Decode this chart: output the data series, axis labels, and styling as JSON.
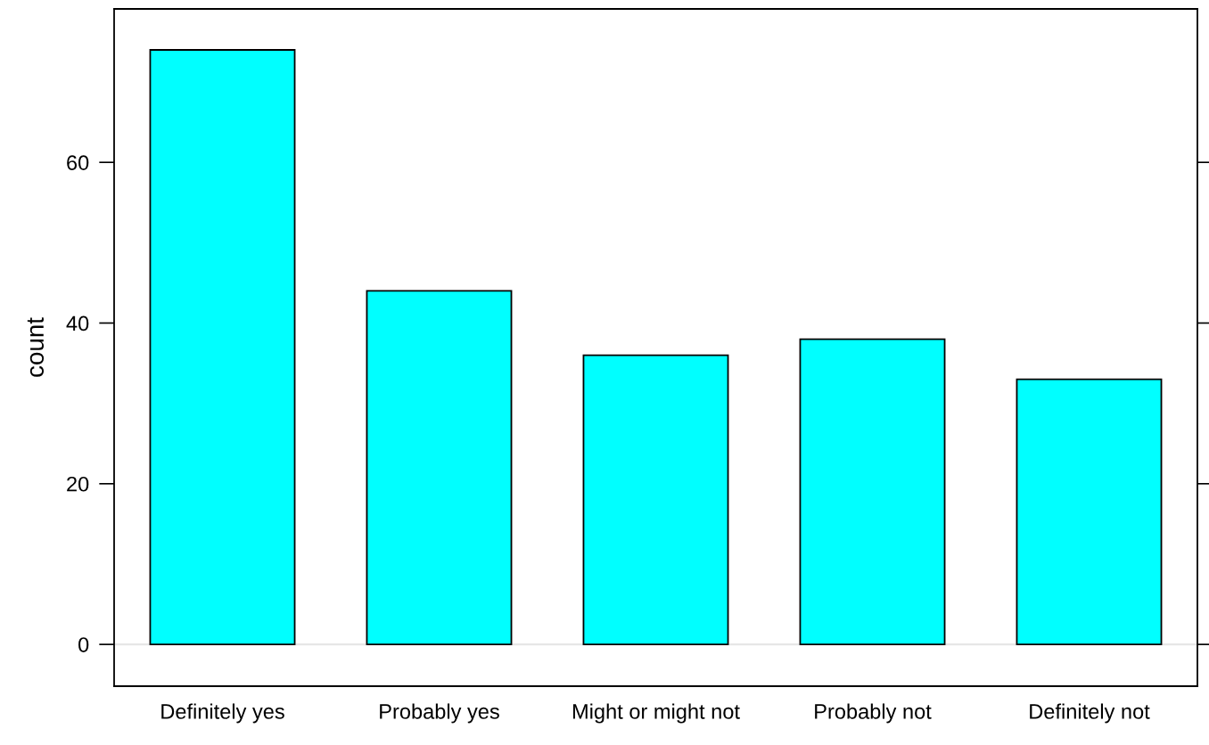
{
  "chart_data": {
    "type": "bar",
    "ylabel": "count",
    "categories": [
      "Definitely yes",
      "Probably yes",
      "Might or might not",
      "Probably not",
      "Definitely not"
    ],
    "values": [
      74,
      44,
      36,
      38,
      33
    ],
    "color": "#00ffff",
    "ylim": [
      -5.2,
      79.1
    ],
    "yticks": [
      0,
      20,
      40,
      60
    ],
    "grid": false,
    "ref_lines": [
      {
        "axis": "y",
        "value": 0,
        "color": "#e6e6e6"
      }
    ]
  }
}
